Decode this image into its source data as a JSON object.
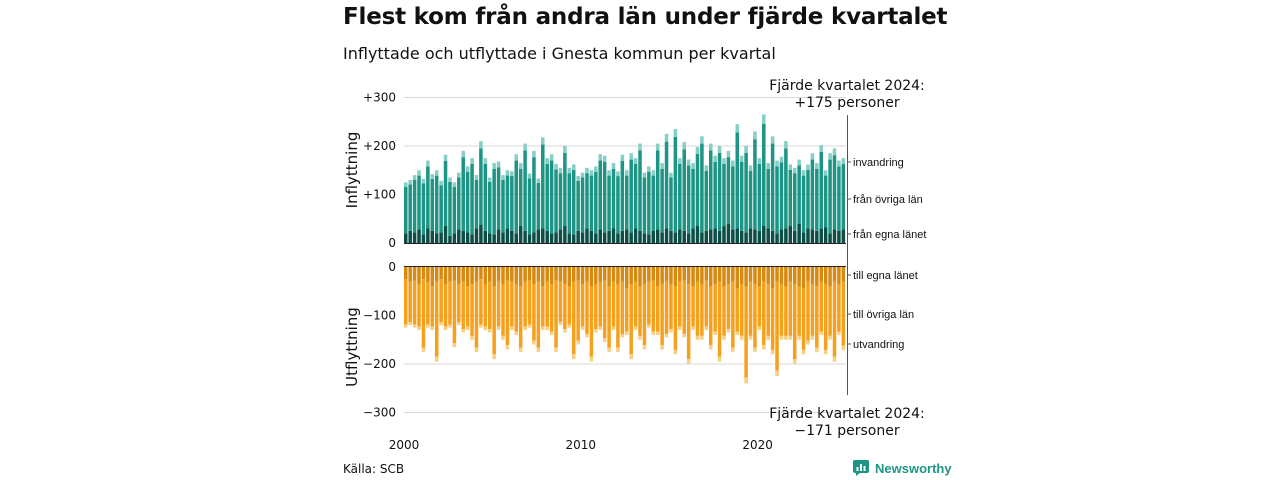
{
  "title": "Flest kom från andra län under fjärde kvartalet",
  "subtitle": "Inflyttade och utflyttade i Gnesta kommun per kvartal",
  "source": "Källa: SCB",
  "brand": "Newsworthy",
  "colors": {
    "in_own": "#0d4f47",
    "in_other": "#1e9584",
    "in_immig": "#87cfc6",
    "out_own": "#d68a12",
    "out_other": "#f6a11e",
    "out_emig": "#f8cf83",
    "grid": "#d8d8d8",
    "brand": "#1e9584"
  },
  "chart_data": [
    {
      "type": "bar",
      "stacked": true,
      "panel": "inflyttning",
      "ylabel": "Inflyttning",
      "ylim": [
        0,
        300
      ],
      "yticks": [
        0,
        100,
        200,
        300
      ],
      "ytick_labels": [
        "0",
        "+100",
        "+200",
        "+300"
      ],
      "xlim": [
        "2000-Q1",
        "2024-Q4"
      ],
      "xticks": [
        "2000",
        "2010",
        "2020"
      ],
      "series_labels": [
        "från egna länet",
        "från övriga län",
        "invandring"
      ],
      "annotation": [
        "Fjärde kvartalet 2024:",
        "+175 personer"
      ],
      "last_quarter_total": 175
    },
    {
      "type": "bar",
      "stacked": true,
      "panel": "utflyttning",
      "ylabel": "Utflyttning",
      "ylim": [
        -300,
        0
      ],
      "yticks": [
        0,
        -100,
        -200,
        -300
      ],
      "ytick_labels": [
        "0",
        "−100",
        "−200",
        "−300"
      ],
      "series_labels": [
        "till egna länet",
        "till övriga län",
        "utvandring"
      ],
      "annotation": [
        "Fjärde kvartalet 2024:",
        "−171 personer"
      ],
      "last_quarter_total": -171
    }
  ],
  "inflow_totals": [
    125,
    130,
    140,
    150,
    132,
    170,
    142,
    150,
    128,
    182,
    135,
    125,
    145,
    190,
    158,
    175,
    140,
    210,
    175,
    135,
    165,
    168,
    140,
    150,
    148,
    183,
    165,
    205,
    143,
    190,
    133,
    218,
    175,
    183,
    163,
    155,
    200,
    155,
    162,
    138,
    145,
    155,
    150,
    158,
    183,
    180,
    150,
    165,
    148,
    182,
    150,
    185,
    175,
    205,
    145,
    158,
    150,
    205,
    165,
    225,
    145,
    235,
    175,
    208,
    172,
    165,
    198,
    220,
    160,
    205,
    180,
    200,
    175,
    190,
    170,
    245,
    180,
    200,
    160,
    230,
    175,
    265,
    165,
    220,
    170,
    178,
    210,
    162,
    155,
    172,
    150,
    162,
    185,
    165,
    202,
    150,
    185,
    195,
    170,
    175
  ],
  "outflow_totals": [
    125,
    120,
    125,
    130,
    175,
    125,
    130,
    195,
    120,
    130,
    125,
    165,
    120,
    135,
    130,
    150,
    175,
    125,
    130,
    135,
    190,
    130,
    150,
    170,
    130,
    140,
    175,
    130,
    125,
    160,
    175,
    130,
    130,
    140,
    175,
    120,
    135,
    125,
    190,
    160,
    130,
    145,
    195,
    135,
    130,
    155,
    175,
    130,
    175,
    145,
    140,
    190,
    130,
    150,
    170,
    125,
    140,
    140,
    170,
    145,
    135,
    180,
    130,
    145,
    200,
    130,
    150,
    150,
    130,
    170,
    140,
    195,
    150,
    135,
    175,
    140,
    150,
    240,
    150,
    175,
    130,
    170,
    150,
    180,
    225,
    150,
    150,
    150,
    200,
    150,
    180,
    160,
    150,
    175,
    140,
    180,
    150,
    195,
    140,
    171
  ],
  "inflow_own_levels": [
    20,
    25,
    22,
    28,
    18,
    30,
    25,
    20,
    22,
    35,
    15,
    20,
    28,
    25,
    22,
    18,
    30,
    38,
    25,
    20,
    18,
    28,
    22,
    30,
    25,
    20,
    35,
    25,
    18,
    22,
    28,
    30,
    25,
    20,
    22,
    28,
    35,
    20,
    18,
    25,
    22,
    30,
    25,
    20,
    28,
    22,
    25,
    30,
    20,
    25,
    28,
    22,
    30,
    25,
    20,
    18,
    25,
    28,
    22,
    30,
    25,
    22,
    28,
    25,
    20,
    30,
    35,
    22,
    25,
    28,
    30,
    25,
    35,
    40,
    28,
    30,
    25,
    22,
    30,
    28,
    25,
    35,
    30,
    25,
    20,
    28,
    30,
    35,
    25,
    40,
    22,
    30,
    28,
    25,
    30,
    32,
    20,
    28,
    25,
    28
  ],
  "outflow_own_levels": [
    25,
    30,
    28,
    35,
    25,
    30,
    40,
    30,
    25,
    35,
    30,
    28,
    35,
    30,
    40,
    35,
    30,
    25,
    35,
    30,
    40,
    30,
    35,
    28,
    30,
    35,
    40,
    30,
    28,
    35,
    30,
    40,
    30,
    35,
    28,
    30,
    35,
    40,
    30,
    28,
    35,
    30,
    40,
    35,
    30,
    28,
    40,
    30,
    35,
    30,
    45,
    35,
    30,
    40,
    35,
    30,
    28,
    40,
    35,
    30,
    35,
    40,
    30,
    28,
    35,
    40,
    30,
    35,
    28,
    40,
    35,
    30,
    40,
    35,
    30,
    45,
    35,
    40,
    30,
    35,
    40,
    30,
    35,
    45,
    30,
    35,
    40,
    30,
    35,
    40,
    45,
    30,
    35,
    40,
    30,
    35,
    40,
    30,
    35,
    30
  ],
  "panels": {
    "in_axis_title": "Inflyttning",
    "out_axis_title": "Utflyttning"
  }
}
